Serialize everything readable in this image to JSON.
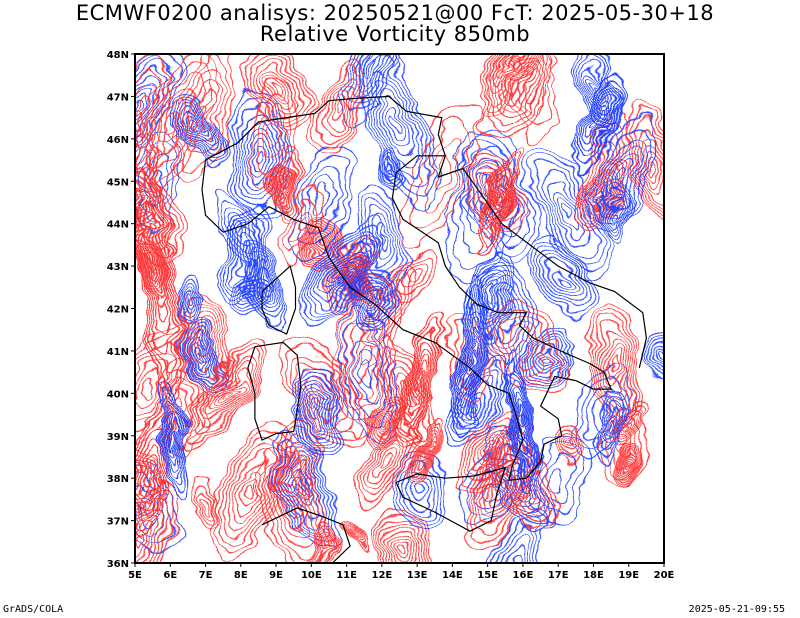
{
  "title": {
    "line1": "ECMWF0200 analisys: 20250521@00 FcT: 2025-05-30+18",
    "line2": "Relative Vorticity 850mb"
  },
  "map": {
    "region": "Italy",
    "lon_range": [
      5,
      20
    ],
    "lat_range": [
      36,
      48
    ],
    "lon_ticks": [
      "5E",
      "6E",
      "7E",
      "8E",
      "9E",
      "10E",
      "11E",
      "12E",
      "13E",
      "14E",
      "15E",
      "16E",
      "17E",
      "18E",
      "19E",
      "20E"
    ],
    "lat_ticks": [
      "36N",
      "37N",
      "38N",
      "39N",
      "40N",
      "41N",
      "42N",
      "43N",
      "44N",
      "45N",
      "46N",
      "47N",
      "48N"
    ],
    "field": "Relative Vorticity 850mb",
    "colors": {
      "positive": "#ff3030",
      "negative": "#2040ff",
      "coastline": "#000000",
      "frame": "#000000"
    },
    "contour_style": "lines"
  },
  "footer": {
    "left": "GrADS/COLA",
    "right": "2025-05-21-09:55"
  }
}
